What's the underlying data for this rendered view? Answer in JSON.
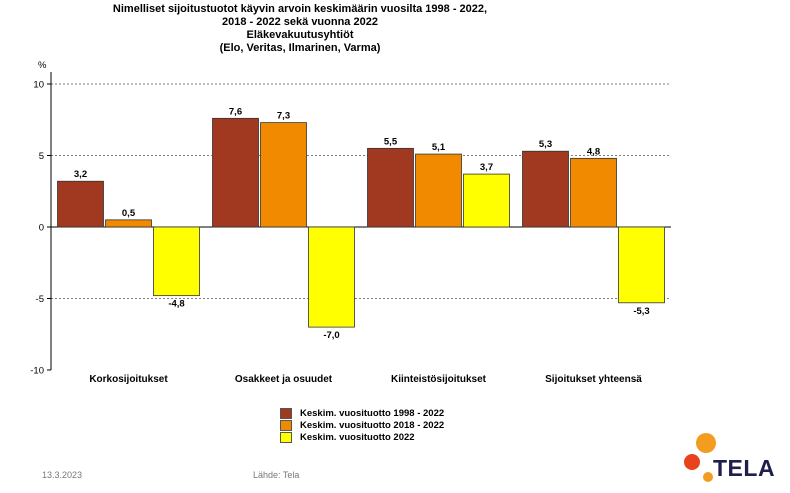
{
  "title_lines": [
    "Nimelliset sijoitustuotot käyvin arvoin keskimäärin vuosilta 1998 - 2022,",
    "2018 - 2022 sekä vuonna 2022",
    "Eläkevakuutusyhtiöt",
    "(Elo, Veritas, Ilmarinen, Varma)"
  ],
  "footer": {
    "date": "13.3.2023",
    "source": "Lähde: Tela"
  },
  "logo": {
    "text": "TELA",
    "colors": [
      "#f39c1f",
      "#e8431c"
    ]
  },
  "chart_data": {
    "type": "bar",
    "title": "Nimelliset sijoitustuotot käyvin arvoin keskimäärin vuosilta 1998 - 2022, 2018 - 2022 sekä vuonna 2022",
    "ylabel": "%",
    "ylim": [
      -10,
      10
    ],
    "yticks": [
      -10,
      -5,
      0,
      5,
      10
    ],
    "grid": true,
    "legend_position": "bottom",
    "categories": [
      "Korkosijoitukset",
      "Osakkeet ja osuudet",
      "Kiinteistösijoitukset",
      "Sijoitukset yhteensä"
    ],
    "series": [
      {
        "name": "Keskim. vuosituotto 1998 - 2022",
        "color": "#a0391f",
        "values": [
          3.2,
          7.6,
          5.5,
          5.3
        ],
        "labels": [
          "3,2",
          "7,6",
          "5,5",
          "5,3"
        ]
      },
      {
        "name": "Keskim. vuosituotto 2018 - 2022",
        "color": "#f28a00",
        "values": [
          0.5,
          7.3,
          5.1,
          4.8
        ],
        "labels": [
          "0,5",
          "7,3",
          "5,1",
          "4,8"
        ]
      },
      {
        "name": "Keskim. vuosituotto 2022",
        "color": "#ffff00",
        "values": [
          -4.8,
          -7.0,
          3.7,
          -5.3
        ],
        "labels": [
          "-4,8",
          "-7,0",
          "3,7",
          "-5,3"
        ]
      }
    ]
  }
}
